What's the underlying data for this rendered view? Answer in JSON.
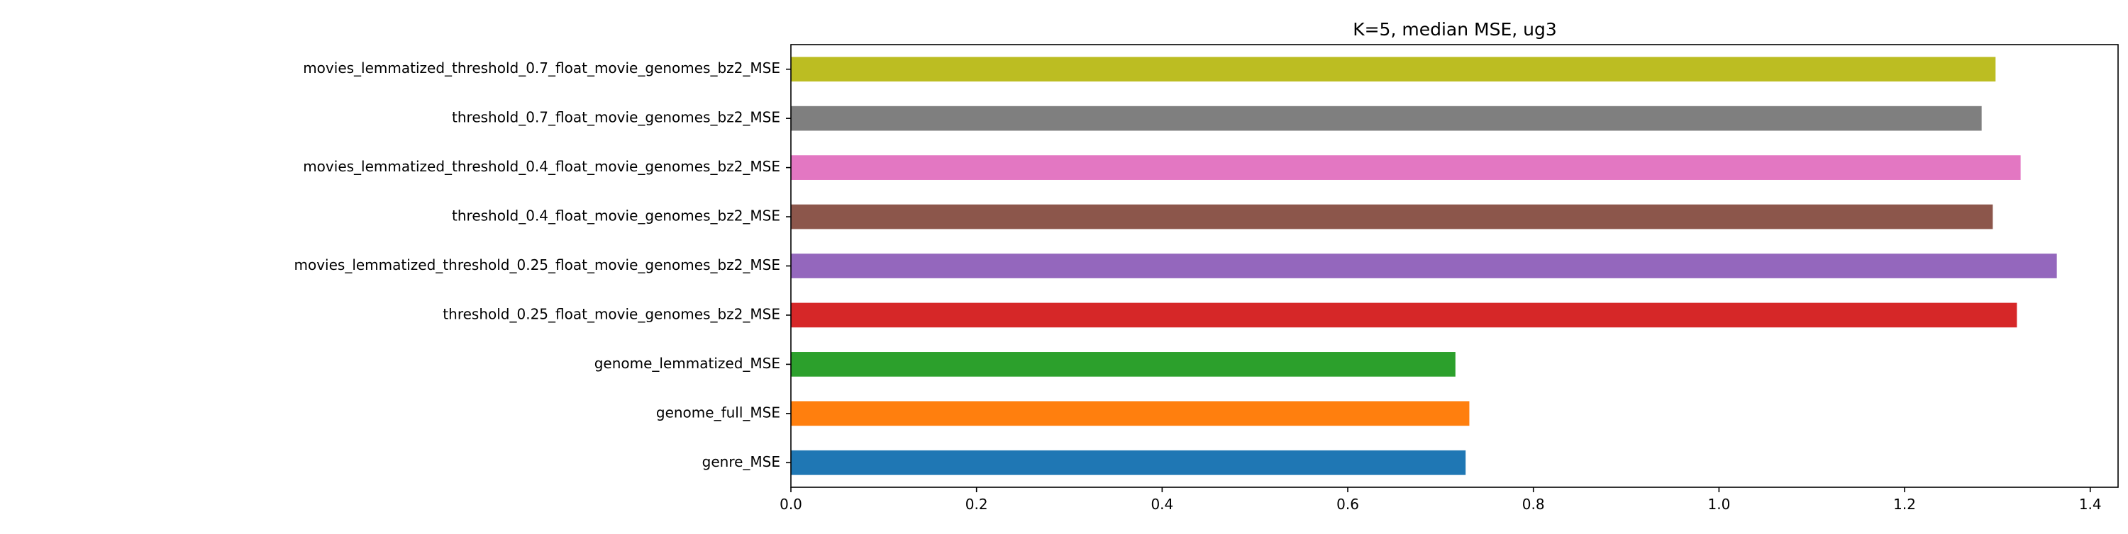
{
  "chart_data": {
    "type": "bar",
    "orientation": "horizontal",
    "title": "K=5, median MSE, ug3",
    "xlabel": "",
    "ylabel": "",
    "xlim": [
      0.0,
      1.43
    ],
    "x_ticks": [
      "0.0",
      "0.2",
      "0.4",
      "0.6",
      "0.8",
      "1.0",
      "1.2",
      "1.4"
    ],
    "grid": false,
    "legend": "none",
    "categories": [
      "genre_MSE",
      "genome_full_MSE",
      "genome_lemmatized_MSE",
      "threshold_0.25_float_movie_genomes_bz2_MSE",
      "movies_lemmatized_threshold_0.25_float_movie_genomes_bz2_MSE",
      "threshold_0.4_float_movie_genomes_bz2_MSE",
      "movies_lemmatized_threshold_0.4_float_movie_genomes_bz2_MSE",
      "threshold_0.7_float_movie_genomes_bz2_MSE",
      "movies_lemmatized_threshold_0.7_float_movie_genomes_bz2_MSE"
    ],
    "values": [
      0.727,
      0.731,
      0.716,
      1.321,
      1.364,
      1.295,
      1.325,
      1.283,
      1.298
    ],
    "colors": [
      "#1f77b4",
      "#ff7f0e",
      "#2ca02c",
      "#d62728",
      "#9467bd",
      "#8c564b",
      "#e377c2",
      "#7f7f7f",
      "#bcbd22"
    ]
  }
}
